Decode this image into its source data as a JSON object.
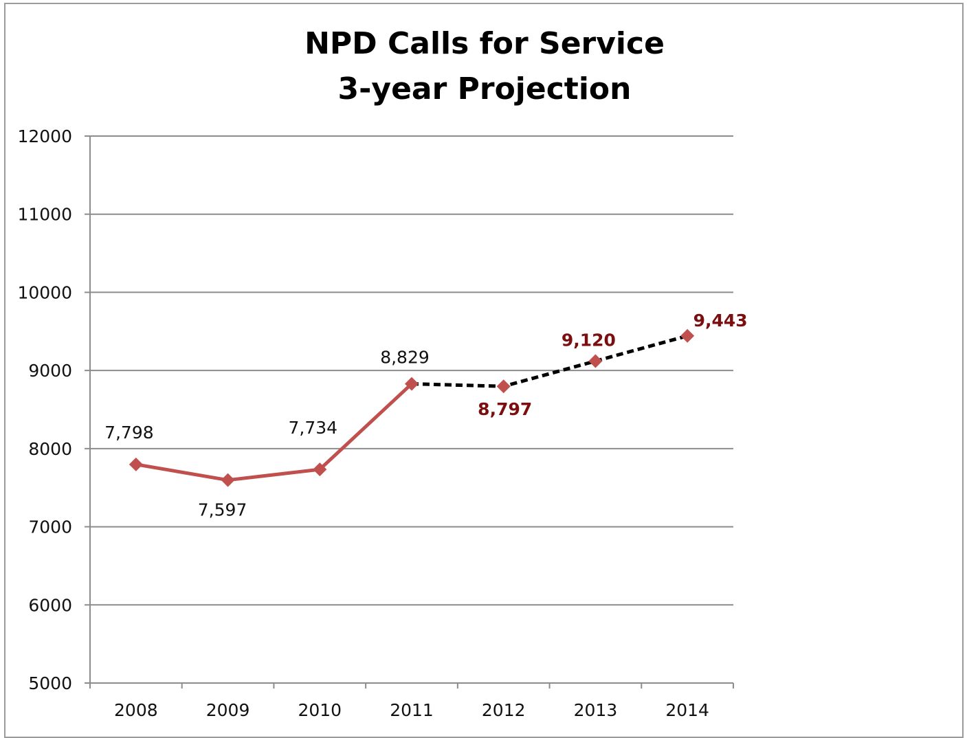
{
  "chart_data": {
    "type": "line",
    "title_lines": [
      "NPD Calls for Service",
      "3-year Projection"
    ],
    "categories": [
      "2008",
      "2009",
      "2010",
      "2011",
      "2012",
      "2013",
      "2014"
    ],
    "series": [
      {
        "values": [
          7798,
          7597,
          7734,
          8829,
          null,
          null,
          null
        ],
        "labels": [
          "7,798",
          "7,597",
          "7,734",
          "8,829",
          "",
          "",
          ""
        ],
        "color": "#c0504d",
        "style": "solid"
      },
      {
        "values": [
          null,
          null,
          null,
          8829,
          8797,
          9120,
          9443
        ],
        "labels": [
          "",
          "",
          "",
          "",
          "8,797",
          "9,120",
          "9,443"
        ],
        "color": "#000000",
        "marker_color": "#c0504d",
        "label_color": "#7b0f0f",
        "style": "dashed"
      }
    ],
    "ylim": [
      5000,
      12000
    ],
    "yticks": [
      "5000",
      "6000",
      "7000",
      "8000",
      "9000",
      "10000",
      "11000",
      "12000"
    ],
    "grid": true,
    "legend": "none"
  }
}
